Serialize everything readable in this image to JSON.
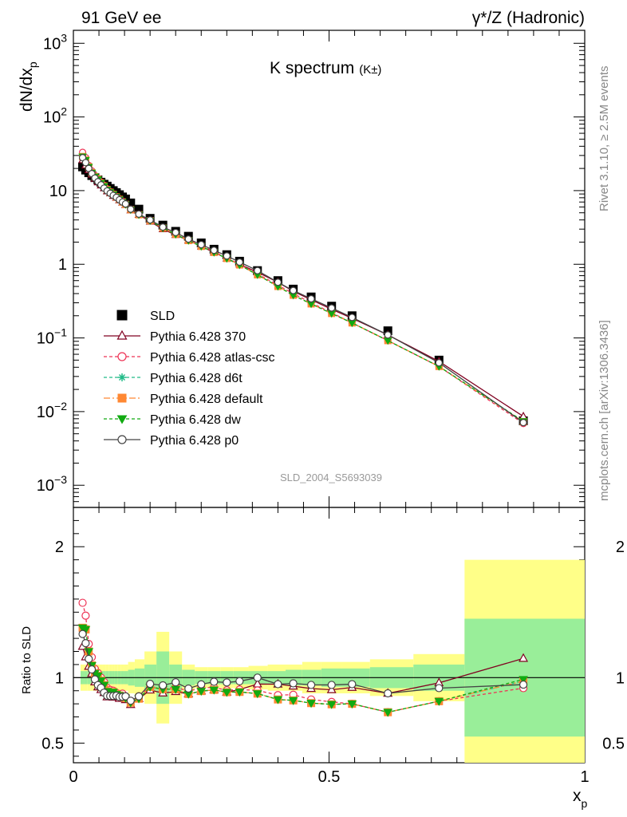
{
  "header": {
    "left": "91 GeV ee",
    "right": "γ*/Z (Hadronic)"
  },
  "side": {
    "rivet": "Rivet 3.1.10, ≥ 2.5M events",
    "mcplots": "mcplots.cern.ch [arXiv:1306.3436]"
  },
  "chart_data": {
    "type": "line",
    "title": "K spectrum",
    "title_suffix": "(K±)",
    "watermark": "SLD_2004_S5693039",
    "xlabel": "x",
    "xlabel_sub": "p",
    "ylabel": "dN/dx",
    "ylabel_sub": "p",
    "ratio_ylabel": "Ratio to SLD",
    "xlim": [
      0,
      1
    ],
    "ylim": [
      0.0005,
      1500
    ],
    "yscale": "log",
    "ratio_ylim": [
      0.35,
      2.3
    ],
    "x_ticks": [
      "0",
      "0.5",
      "1"
    ],
    "y_ticks": [
      "10−3",
      "10−2",
      "10−1",
      "1",
      "10",
      "102",
      "103"
    ],
    "ratio_ticks": [
      "0.5",
      "1",
      "2"
    ],
    "legend_position": "middle-left",
    "x": [
      0.018,
      0.024,
      0.03,
      0.036,
      0.042,
      0.048,
      0.054,
      0.06,
      0.066,
      0.072,
      0.078,
      0.084,
      0.09,
      0.096,
      0.102,
      0.112,
      0.128,
      0.15,
      0.175,
      0.2,
      0.225,
      0.25,
      0.275,
      0.3,
      0.325,
      0.36,
      0.4,
      0.43,
      0.465,
      0.505,
      0.545,
      0.615,
      0.715,
      0.88
    ],
    "data": {
      "name": "SLD",
      "color": "#000000",
      "values": [
        21,
        19,
        17.5,
        16,
        15,
        14,
        13,
        12.2,
        11.5,
        10.7,
        10,
        9.4,
        8.8,
        8.2,
        7.7,
        6.8,
        5.6,
        4.2,
        3.4,
        2.8,
        2.4,
        1.95,
        1.6,
        1.35,
        1.1,
        0.82,
        0.6,
        0.46,
        0.36,
        0.27,
        0.2,
        0.125,
        0.05,
        0.0075
      ],
      "band_inner": [
        0.05,
        0.05,
        0.05,
        0.05,
        0.05,
        0.05,
        0.05,
        0.05,
        0.05,
        0.05,
        0.05,
        0.05,
        0.05,
        0.05,
        0.05,
        0.06,
        0.07,
        0.1,
        0.2,
        0.1,
        0.06,
        0.05,
        0.05,
        0.05,
        0.05,
        0.05,
        0.05,
        0.06,
        0.06,
        0.07,
        0.07,
        0.08,
        0.1,
        0.45
      ],
      "band_outer": [
        0.1,
        0.1,
        0.1,
        0.1,
        0.1,
        0.1,
        0.1,
        0.1,
        0.1,
        0.1,
        0.1,
        0.1,
        0.1,
        0.1,
        0.1,
        0.12,
        0.14,
        0.2,
        0.35,
        0.2,
        0.1,
        0.08,
        0.08,
        0.08,
        0.08,
        0.09,
        0.1,
        0.1,
        0.12,
        0.12,
        0.12,
        0.14,
        0.18,
        0.9
      ]
    },
    "series": [
      {
        "name": "Pythia 6.428 370",
        "color": "#800020",
        "dash": "",
        "marker": "triangle",
        "values": [
          26,
          22,
          19,
          16.5,
          14.5,
          13,
          11.8,
          10.8,
          9.8,
          9.2,
          8.5,
          8.0,
          7.4,
          6.9,
          6.4,
          5.4,
          4.7,
          3.8,
          3.0,
          2.5,
          2.1,
          1.75,
          1.45,
          1.2,
          1.0,
          0.78,
          0.57,
          0.43,
          0.33,
          0.245,
          0.185,
          0.11,
          0.048,
          0.0086
        ]
      },
      {
        "name": "Pythia 6.428 atlas-csc",
        "color": "#ee3355",
        "dash": "4,3",
        "marker": "circle-open",
        "values": [
          33,
          28,
          22,
          18.5,
          16,
          14.5,
          13,
          11.8,
          10.6,
          9.7,
          9.0,
          8.3,
          7.7,
          7.2,
          6.6,
          5.6,
          4.8,
          3.9,
          3.1,
          2.6,
          2.15,
          1.8,
          1.48,
          1.22,
          1.0,
          0.74,
          0.52,
          0.4,
          0.3,
          0.22,
          0.16,
          0.092,
          0.041,
          0.0069
        ]
      },
      {
        "name": "Pythia 6.428 d6t",
        "color": "#22bb88",
        "dash": "4,3",
        "marker": "star",
        "values": [
          29,
          26,
          21,
          17.5,
          15.5,
          14.2,
          12.7,
          11.5,
          10.3,
          9.5,
          8.9,
          8.2,
          7.6,
          7.0,
          6.5,
          5.5,
          4.7,
          3.9,
          3.1,
          2.55,
          2.1,
          1.75,
          1.45,
          1.2,
          0.98,
          0.72,
          0.5,
          0.38,
          0.29,
          0.215,
          0.16,
          0.092,
          0.041,
          0.0073
        ]
      },
      {
        "name": "Pythia 6.428 default",
        "color": "#ff8833",
        "dash": "8,3,2,3",
        "marker": "square",
        "values": [
          29,
          26,
          21,
          17.5,
          15.5,
          14.2,
          12.7,
          11.5,
          10.3,
          9.5,
          8.9,
          8.2,
          7.6,
          7.0,
          6.5,
          5.5,
          4.7,
          3.9,
          3.1,
          2.55,
          2.1,
          1.75,
          1.45,
          1.2,
          0.98,
          0.72,
          0.5,
          0.38,
          0.29,
          0.215,
          0.16,
          0.092,
          0.041,
          0.0073
        ]
      },
      {
        "name": "Pythia 6.428 dw",
        "color": "#11aa11",
        "dash": "4,3",
        "marker": "triangle-down",
        "values": [
          29,
          26,
          21,
          17.5,
          15.5,
          14.2,
          12.7,
          11.5,
          10.3,
          9.5,
          8.9,
          8.2,
          7.6,
          7.0,
          6.5,
          5.5,
          4.7,
          3.9,
          3.1,
          2.55,
          2.1,
          1.75,
          1.45,
          1.2,
          0.98,
          0.72,
          0.5,
          0.38,
          0.29,
          0.215,
          0.16,
          0.092,
          0.041,
          0.0074
        ]
      },
      {
        "name": "Pythia 6.428 p0",
        "color": "#444444",
        "dash": "",
        "marker": "circle-open",
        "values": [
          28,
          24,
          20,
          17,
          14.8,
          13.2,
          12,
          10.8,
          9.9,
          9.2,
          8.6,
          8.1,
          7.5,
          7.0,
          6.6,
          5.6,
          4.8,
          4.0,
          3.2,
          2.7,
          2.2,
          1.85,
          1.55,
          1.3,
          1.07,
          0.82,
          0.57,
          0.44,
          0.34,
          0.255,
          0.19,
          0.11,
          0.046,
          0.0071
        ]
      }
    ]
  }
}
